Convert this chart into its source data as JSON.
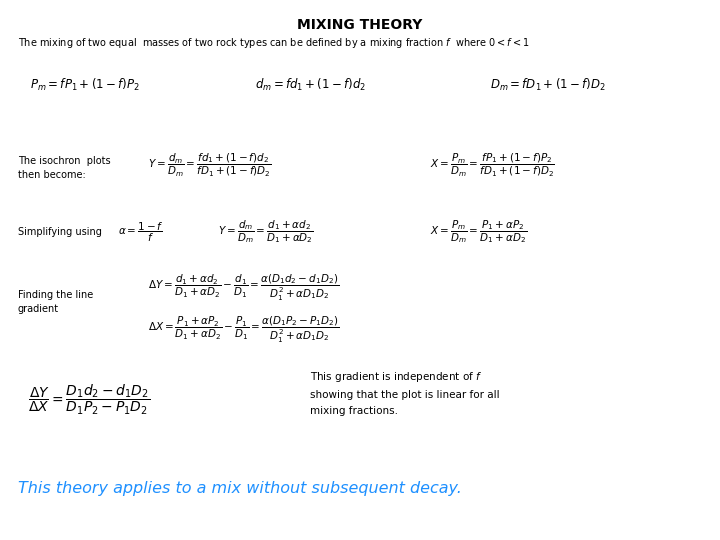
{
  "title": "MIXING THEORY",
  "subtitle": "The mixing of two equal  masses of two rock types can be defined by a mixing fraction $f$  where $0 < f < 1$",
  "line1_left": "$P_m = fP_1 + \\left(1 - f\\right)P_2$",
  "line1_mid": "$d_m = fd_1 + \\left(1 - f\\right)d_2$",
  "line1_right": "$D_m = fD_1 + \\left(1 - f\\right)D_2$",
  "label_isochron": "The isochron  plots\nthen become:",
  "isochron_eq1": "$Y = \\dfrac{d_m}{D_m} = \\dfrac{fd_1 + \\left(1 - f\\right)d_2}{fD_1 + \\left(1 - f\\right)D_2}$",
  "isochron_eq2": "$X = \\dfrac{P_m}{D_m} = \\dfrac{fP_1 + \\left(1 - f\\right)P_2}{fD_1 + \\left(1 - f\\right)D_2}$",
  "label_simplify": "Simplifying using",
  "simplify_alpha": "$\\alpha = \\dfrac{1 - f}{f}$",
  "simplify_eq1": "$Y = \\dfrac{d_m}{D_m} = \\dfrac{d_1 + \\alpha d_2}{D_1 + \\alpha D_2}$",
  "simplify_eq2": "$X = \\dfrac{P_m}{D_m} = \\dfrac{P_1 + \\alpha P_2}{D_1 + \\alpha D_2}$",
  "label_gradient": "Finding the line\ngradient",
  "gradient_eq1": "$\\Delta Y = \\dfrac{d_1 + \\alpha d_2}{D_1 + \\alpha D_2} - \\dfrac{d_1}{D_1} = \\dfrac{\\alpha\\left(D_1 d_2 - d_1 D_2\\right)}{D_1^2 + \\alpha D_1 D_2}$",
  "gradient_eq2": "$\\Delta X = \\dfrac{P_1 + \\alpha P_2}{D_1 + \\alpha D_2} - \\dfrac{P_1}{D_1} = \\dfrac{\\alpha\\left(D_1 P_2 - P_1 D_2\\right)}{D_1^2 + \\alpha D_1 D_2}$",
  "final_eq": "$\\dfrac{\\Delta Y}{\\Delta X} = \\dfrac{D_1 d_2 - d_1 D_2}{D_1 P_2 - P_1 D_2}$",
  "final_text": "This gradient is independent of $f$\nshowing that the plot is linear for all\nmixing fractions.",
  "italic_text": "This theory applies to a mix without subsequent decay.",
  "italic_color": "#1E90FF",
  "bg_color": "#ffffff",
  "fs_title": 10,
  "fs_subtitle": 7.0,
  "fs_eq_main": 8.5,
  "fs_eq_section": 7.5,
  "fs_label": 7.0,
  "fs_final_eq": 10.0,
  "fs_final_text": 7.5,
  "fs_italic": 11.5
}
